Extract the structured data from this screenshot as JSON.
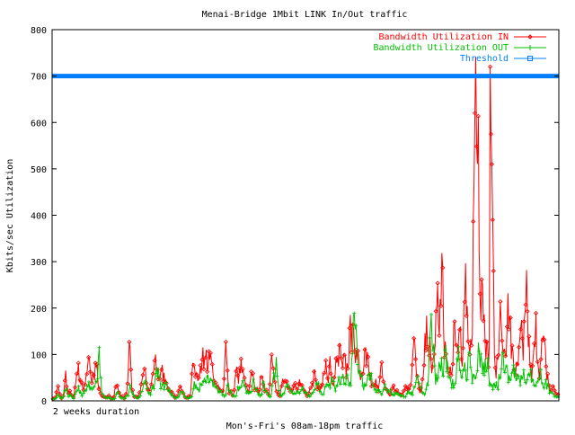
{
  "chart_data": {
    "type": "line",
    "title": "Menai-Bridge 1Mbit LINK In/Out traffic",
    "xlabel": "Mon's-Fri's 08am-18pm traffic",
    "ylabel": "Kbits/sec Utilization",
    "x_tick_label": "2 weeks duration",
    "ylim": [
      0,
      800
    ],
    "yticks": [
      0,
      100,
      200,
      300,
      400,
      500,
      600,
      700,
      800
    ],
    "grid": false,
    "legend_position": "top-right",
    "series": [
      {
        "name": "Bandwidth Utilization IN",
        "color": "#ff0000",
        "marker": "diamond",
        "samples": [
          5,
          6,
          30,
          8,
          10,
          60,
          15,
          20,
          8,
          40,
          70,
          30,
          25,
          50,
          90,
          45,
          60,
          80,
          30,
          12,
          8,
          6,
          10,
          5,
          7,
          40,
          15,
          8,
          6,
          20,
          110,
          30,
          10,
          8,
          15,
          40,
          60,
          30,
          20,
          55,
          80,
          70,
          40,
          65,
          50,
          30,
          20,
          15,
          8,
          10,
          30,
          20,
          8,
          6,
          10,
          90,
          60,
          40,
          80,
          100,
          85,
          70,
          90,
          60,
          40,
          30,
          25,
          15,
          120,
          30,
          20,
          10,
          60,
          40,
          90,
          50,
          30,
          20,
          70,
          40,
          25,
          15,
          60,
          30,
          20,
          15,
          100,
          40,
          20,
          10,
          30,
          50,
          40,
          30,
          20,
          35,
          25,
          40,
          30,
          20,
          10,
          25,
          40,
          60,
          30,
          20,
          40,
          70,
          50,
          90,
          40,
          60,
          80,
          110,
          70,
          90,
          60,
          170,
          150,
          80,
          100,
          40,
          60,
          130,
          90,
          50,
          30,
          40,
          25,
          70,
          40,
          30,
          20,
          15,
          30,
          20,
          15,
          10,
          20,
          30,
          25,
          50,
          120,
          60,
          30,
          20,
          80,
          160,
          120,
          60,
          90,
          200,
          150,
          290,
          100,
          80,
          60,
          70,
          180,
          110,
          140,
          90,
          240,
          180,
          100,
          130,
          700,
          520,
          280,
          240,
          120,
          110,
          100,
          140,
          60,
          90,
          180,
          130,
          100,
          230,
          150,
          110,
          60,
          80,
          180,
          100,
          250,
          120,
          70,
          90,
          160,
          60,
          100,
          140,
          80,
          35,
          20,
          30,
          15
        ],
        "spike": [
          720,
          575,
          510,
          390,
          280
        ]
      },
      {
        "name": "Bandwidth Utilization OUT",
        "color": "#00c000",
        "marker": "plus",
        "samples": [
          3,
          5,
          15,
          6,
          8,
          25,
          10,
          12,
          5,
          20,
          30,
          18,
          15,
          25,
          40,
          22,
          30,
          45,
          120,
          15,
          8,
          5,
          8,
          4,
          6,
          20,
          10,
          6,
          5,
          12,
          30,
          15,
          8,
          6,
          10,
          25,
          40,
          20,
          15,
          30,
          50,
          60,
          25,
          40,
          35,
          20,
          15,
          10,
          6,
          8,
          20,
          12,
          6,
          5,
          8,
          40,
          30,
          20,
          40,
          50,
          45,
          35,
          50,
          35,
          25,
          20,
          15,
          10,
          40,
          18,
          12,
          8,
          30,
          25,
          50,
          30,
          20,
          15,
          40,
          25,
          15,
          10,
          35,
          20,
          12,
          10,
          60,
          80,
          20,
          8,
          20,
          30,
          25,
          20,
          15,
          20,
          15,
          25,
          20,
          15,
          8,
          15,
          25,
          40,
          20,
          15,
          25,
          40,
          30,
          50,
          25,
          35,
          40,
          60,
          40,
          50,
          30,
          170,
          160,
          50,
          60,
          25,
          35,
          60,
          50,
          30,
          20,
          25,
          15,
          30,
          25,
          20,
          15,
          10,
          20,
          15,
          10,
          8,
          15,
          20,
          15,
          30,
          50,
          30,
          20,
          15,
          40,
          155,
          115,
          40,
          50,
          80,
          60,
          110,
          60,
          50,
          35,
          40,
          120,
          60,
          80,
          50,
          100,
          70,
          50,
          60,
          130,
          100,
          60,
          80,
          40,
          30,
          40,
          30,
          60,
          90,
          60,
          70,
          50,
          60,
          60,
          50,
          40,
          60,
          40,
          50,
          60,
          40,
          30,
          40,
          60,
          30,
          40,
          30,
          20,
          15,
          10
        ]
      },
      {
        "name": "Threshold",
        "color": "#0080ff",
        "marker": "square",
        "value": 700
      }
    ]
  }
}
